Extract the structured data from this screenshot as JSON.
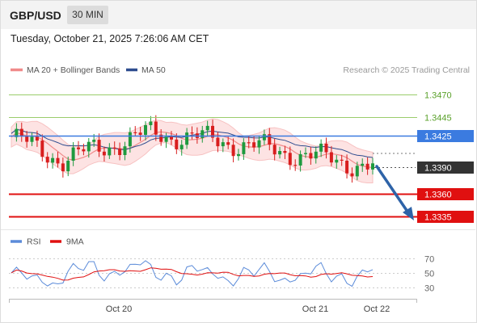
{
  "header": {
    "pair": "GBP/USD",
    "timeframe": "30 MIN"
  },
  "timestamp": "Tuesday, October 21, 2025 7:26:06 AM CET",
  "legend": {
    "ma20": "MA 20 + Bollinger Bands",
    "ma50": "MA 50",
    "credit": "Research © 2025 Trading Central"
  },
  "colors": {
    "bullish": "#1e9a3e",
    "bearish": "#d81e1e",
    "resistance_light": "#9acd6b",
    "pivot": "#3b7be0",
    "support": "#e01010",
    "ma20_band": "#f7b6b6",
    "ma50": "#2e4d8f",
    "rsi": "#5b8bd9",
    "rsi_ma": "#e01010"
  },
  "chart_data": {
    "type": "candlestick",
    "y_range": [
      1.3322,
      1.3487
    ],
    "levels": [
      {
        "value": 1.347,
        "label": "1.3470",
        "kind": "resistance"
      },
      {
        "value": 1.3445,
        "label": "1.3445",
        "kind": "resistance"
      },
      {
        "value": 1.3425,
        "label": "1.3425",
        "kind": "pivot"
      },
      {
        "value": 1.339,
        "label": "1.3390",
        "kind": "last"
      },
      {
        "value": 1.336,
        "label": "1.3360",
        "kind": "support"
      },
      {
        "value": 1.3335,
        "label": "1.3335",
        "kind": "support"
      }
    ],
    "x_ticks": [
      "Oct 20",
      "Oct 21",
      "Oct 22"
    ],
    "forecast_target": 1.3335,
    "rsi": {
      "legend": {
        "rsi": "RSI",
        "ma": "9MA"
      },
      "y_ticks": [
        "70",
        "50",
        "30"
      ],
      "y_range": [
        20,
        80
      ]
    }
  }
}
